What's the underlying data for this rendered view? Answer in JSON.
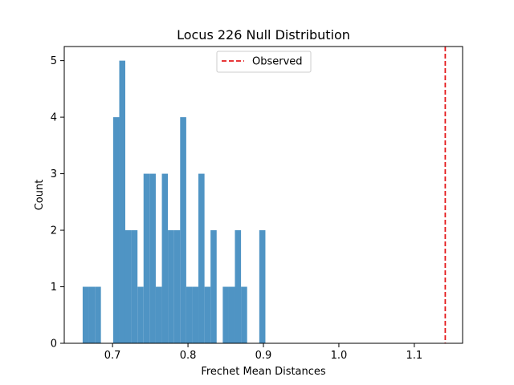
{
  "chart_data": {
    "type": "bar",
    "title": "Locus 226 Null Distribution",
    "xlabel": "Frechet Mean Distances",
    "ylabel": "Count",
    "xlim": [
      0.636,
      1.164
    ],
    "ylim": [
      0,
      5.25
    ],
    "xticks": [
      {
        "value": 0.7,
        "label": "0.7"
      },
      {
        "value": 0.8,
        "label": "0.8"
      },
      {
        "value": 0.9,
        "label": "0.9"
      },
      {
        "value": 1.0,
        "label": "1.0"
      },
      {
        "value": 1.1,
        "label": "1.1"
      }
    ],
    "yticks": [
      {
        "value": 0,
        "label": "0"
      },
      {
        "value": 1,
        "label": "1"
      },
      {
        "value": 2,
        "label": "2"
      },
      {
        "value": 3,
        "label": "3"
      },
      {
        "value": 4,
        "label": "4"
      },
      {
        "value": 5,
        "label": "5"
      }
    ],
    "bin_edges": [
      0.6604,
      0.6685,
      0.6766,
      0.6846,
      0.6927,
      0.7008,
      0.7089,
      0.7169,
      0.725,
      0.7331,
      0.7411,
      0.7492,
      0.7573,
      0.7654,
      0.7734,
      0.7815,
      0.7896,
      0.7977,
      0.8057,
      0.8138,
      0.8219,
      0.8299,
      0.838,
      0.8461,
      0.8542,
      0.8622,
      0.8703,
      0.8784,
      0.8865,
      0.8945,
      0.9026
    ],
    "counts": [
      1,
      1,
      1,
      0,
      0,
      4,
      5,
      2,
      2,
      1,
      3,
      3,
      1,
      3,
      2,
      2,
      4,
      1,
      1,
      3,
      1,
      2,
      0,
      1,
      1,
      2,
      1,
      0,
      0,
      2
    ],
    "bar_color": "#4f94c4",
    "observed": {
      "value": 1.141,
      "label": "Observed",
      "color": "#e41a1c",
      "style": "dashed"
    },
    "legend_position": "upper center"
  }
}
